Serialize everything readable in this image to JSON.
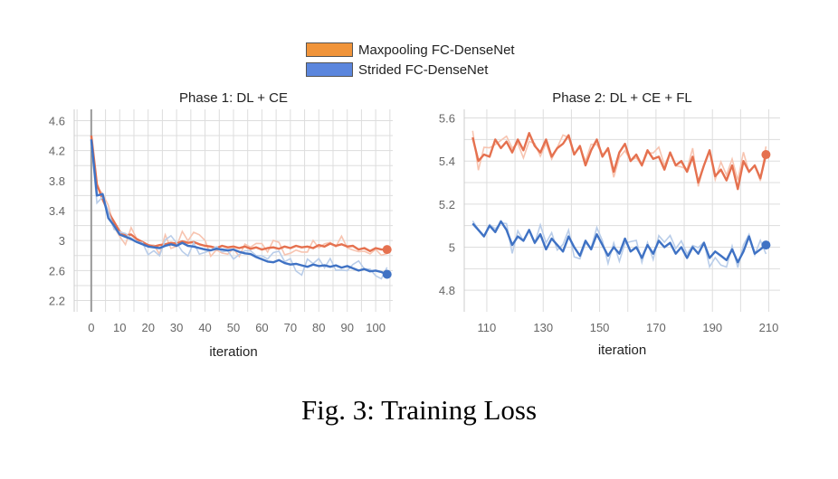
{
  "caption": "Fig. 3: Training Loss",
  "legend": {
    "items": [
      {
        "label": "Maxpooling FC-DenseNet",
        "color": "#f0943a"
      },
      {
        "label": "Strided FC-DenseNet",
        "color": "#5b86dd"
      }
    ]
  },
  "colors": {
    "max_line": "#e5714f",
    "max_smooth": "#f7c4b0",
    "str_line": "#3f72c4",
    "str_smooth": "#b9cde9",
    "grid": "#dddddd",
    "tick": "#666666"
  },
  "chart_data": [
    {
      "type": "line",
      "title": "Phase 1: DL + CE",
      "xlabel": "iteration",
      "ylabel": "",
      "xlim": [
        -6,
        106
      ],
      "ylim": [
        2.05,
        4.75
      ],
      "xticks": [
        0,
        10,
        20,
        30,
        40,
        50,
        60,
        70,
        80,
        90,
        100
      ],
      "yticks": [
        2.2,
        2.6,
        3,
        3.4,
        3.8,
        4.2,
        4.6
      ],
      "ytick_labels": [
        "2.2",
        "2.6",
        "3",
        "3.4",
        "3.8",
        "4.2",
        "4.6"
      ],
      "vline_x": 0,
      "grid": true,
      "series": [
        {
          "name": "Maxpooling FC-DenseNet",
          "x": [
            0,
            2,
            4,
            6,
            8,
            10,
            12,
            14,
            16,
            18,
            20,
            22,
            24,
            26,
            28,
            30,
            32,
            34,
            36,
            38,
            40,
            42,
            44,
            46,
            48,
            50,
            52,
            54,
            56,
            58,
            60,
            62,
            64,
            66,
            68,
            70,
            72,
            74,
            76,
            78,
            80,
            82,
            84,
            86,
            88,
            90,
            92,
            94,
            96,
            98,
            100,
            102,
            104
          ],
          "y": [
            4.4,
            3.75,
            3.55,
            3.38,
            3.25,
            3.12,
            3.07,
            3.08,
            3.02,
            2.98,
            2.94,
            2.92,
            2.94,
            2.95,
            2.97,
            2.96,
            2.99,
            2.97,
            2.98,
            2.95,
            2.93,
            2.92,
            2.9,
            2.93,
            2.91,
            2.92,
            2.9,
            2.92,
            2.89,
            2.91,
            2.88,
            2.9,
            2.91,
            2.89,
            2.92,
            2.9,
            2.93,
            2.91,
            2.92,
            2.9,
            2.94,
            2.92,
            2.96,
            2.93,
            2.95,
            2.92,
            2.93,
            2.88,
            2.9,
            2.86,
            2.9,
            2.88,
            2.88
          ],
          "end_marker": [
            104,
            2.88
          ]
        },
        {
          "name": "Strided FC-DenseNet",
          "x": [
            0,
            2,
            4,
            6,
            8,
            10,
            12,
            14,
            16,
            18,
            20,
            22,
            24,
            26,
            28,
            30,
            32,
            34,
            36,
            38,
            40,
            42,
            44,
            46,
            48,
            50,
            52,
            54,
            56,
            58,
            60,
            62,
            64,
            66,
            68,
            70,
            72,
            74,
            76,
            78,
            80,
            82,
            84,
            86,
            88,
            90,
            92,
            94,
            96,
            98,
            100,
            102,
            104
          ],
          "y": [
            4.35,
            3.6,
            3.62,
            3.3,
            3.2,
            3.08,
            3.05,
            3.02,
            2.98,
            2.95,
            2.92,
            2.91,
            2.9,
            2.93,
            2.95,
            2.93,
            2.97,
            2.93,
            2.92,
            2.9,
            2.88,
            2.87,
            2.89,
            2.88,
            2.87,
            2.88,
            2.85,
            2.83,
            2.82,
            2.78,
            2.75,
            2.72,
            2.71,
            2.74,
            2.7,
            2.68,
            2.69,
            2.67,
            2.65,
            2.68,
            2.66,
            2.67,
            2.65,
            2.67,
            2.64,
            2.66,
            2.63,
            2.6,
            2.62,
            2.59,
            2.6,
            2.58,
            2.55
          ],
          "end_marker": [
            104,
            2.55
          ]
        }
      ]
    },
    {
      "type": "line",
      "title": "Phase 2: DL + CE + FL",
      "xlabel": "iteration",
      "ylabel": "",
      "xlim": [
        102,
        214
      ],
      "ylim": [
        4.7,
        5.64
      ],
      "xticks": [
        110,
        130,
        150,
        170,
        190,
        210
      ],
      "yticks": [
        4.8,
        5,
        5.2,
        5.4,
        5.6
      ],
      "ytick_labels": [
        "4.8",
        "5",
        "5.2",
        "5.4",
        "5.6"
      ],
      "grid": true,
      "series": [
        {
          "name": "Maxpooling FC-DenseNet",
          "x": [
            105,
            107,
            109,
            111,
            113,
            115,
            117,
            119,
            121,
            123,
            125,
            127,
            129,
            131,
            133,
            135,
            137,
            139,
            141,
            143,
            145,
            147,
            149,
            151,
            153,
            155,
            157,
            159,
            161,
            163,
            165,
            167,
            169,
            171,
            173,
            175,
            177,
            179,
            181,
            183,
            185,
            187,
            189,
            191,
            193,
            195,
            197,
            199,
            201,
            203,
            205,
            207,
            209
          ],
          "y": [
            5.51,
            5.4,
            5.43,
            5.42,
            5.5,
            5.46,
            5.49,
            5.44,
            5.5,
            5.45,
            5.53,
            5.47,
            5.44,
            5.5,
            5.42,
            5.46,
            5.48,
            5.52,
            5.43,
            5.47,
            5.38,
            5.45,
            5.5,
            5.42,
            5.46,
            5.35,
            5.44,
            5.48,
            5.4,
            5.43,
            5.38,
            5.45,
            5.41,
            5.42,
            5.36,
            5.44,
            5.38,
            5.4,
            5.35,
            5.42,
            5.3,
            5.38,
            5.45,
            5.33,
            5.36,
            5.31,
            5.38,
            5.27,
            5.4,
            5.35,
            5.38,
            5.32,
            5.43
          ],
          "end_marker": [
            209,
            5.43
          ]
        },
        {
          "name": "Strided FC-DenseNet",
          "x": [
            105,
            107,
            109,
            111,
            113,
            115,
            117,
            119,
            121,
            123,
            125,
            127,
            129,
            131,
            133,
            135,
            137,
            139,
            141,
            143,
            145,
            147,
            149,
            151,
            153,
            155,
            157,
            159,
            161,
            163,
            165,
            167,
            169,
            171,
            173,
            175,
            177,
            179,
            181,
            183,
            185,
            187,
            189,
            191,
            193,
            195,
            197,
            199,
            201,
            203,
            205,
            207,
            209
          ],
          "y": [
            5.11,
            5.08,
            5.05,
            5.1,
            5.07,
            5.12,
            5.08,
            5.01,
            5.05,
            5.03,
            5.08,
            5.02,
            5.06,
            4.99,
            5.04,
            5.01,
            4.98,
            5.05,
            5.0,
            4.96,
            5.03,
            4.99,
            5.06,
            5.01,
            4.96,
            5.0,
            4.97,
            5.04,
            4.98,
            5.0,
            4.95,
            5.01,
            4.97,
            5.03,
            5.0,
            5.02,
            4.97,
            5.0,
            4.95,
            5.0,
            4.97,
            5.02,
            4.95,
            4.98,
            4.96,
            4.94,
            4.99,
            4.93,
            4.98,
            5.05,
            4.97,
            4.99,
            5.01
          ],
          "end_marker": [
            209,
            5.01
          ]
        }
      ]
    }
  ]
}
